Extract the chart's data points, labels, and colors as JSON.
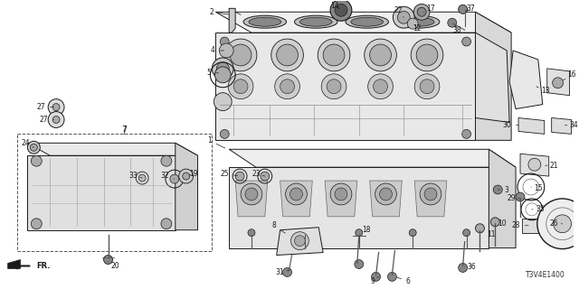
{
  "diagram_code": "T3V4E1400",
  "bg_color": "#ffffff",
  "line_color": "#1a1a1a",
  "gray_light": "#aaaaaa",
  "gray_mid": "#777777",
  "gray_dark": "#444444",
  "label_fs": 5.5,
  "title_fs": 7.0
}
